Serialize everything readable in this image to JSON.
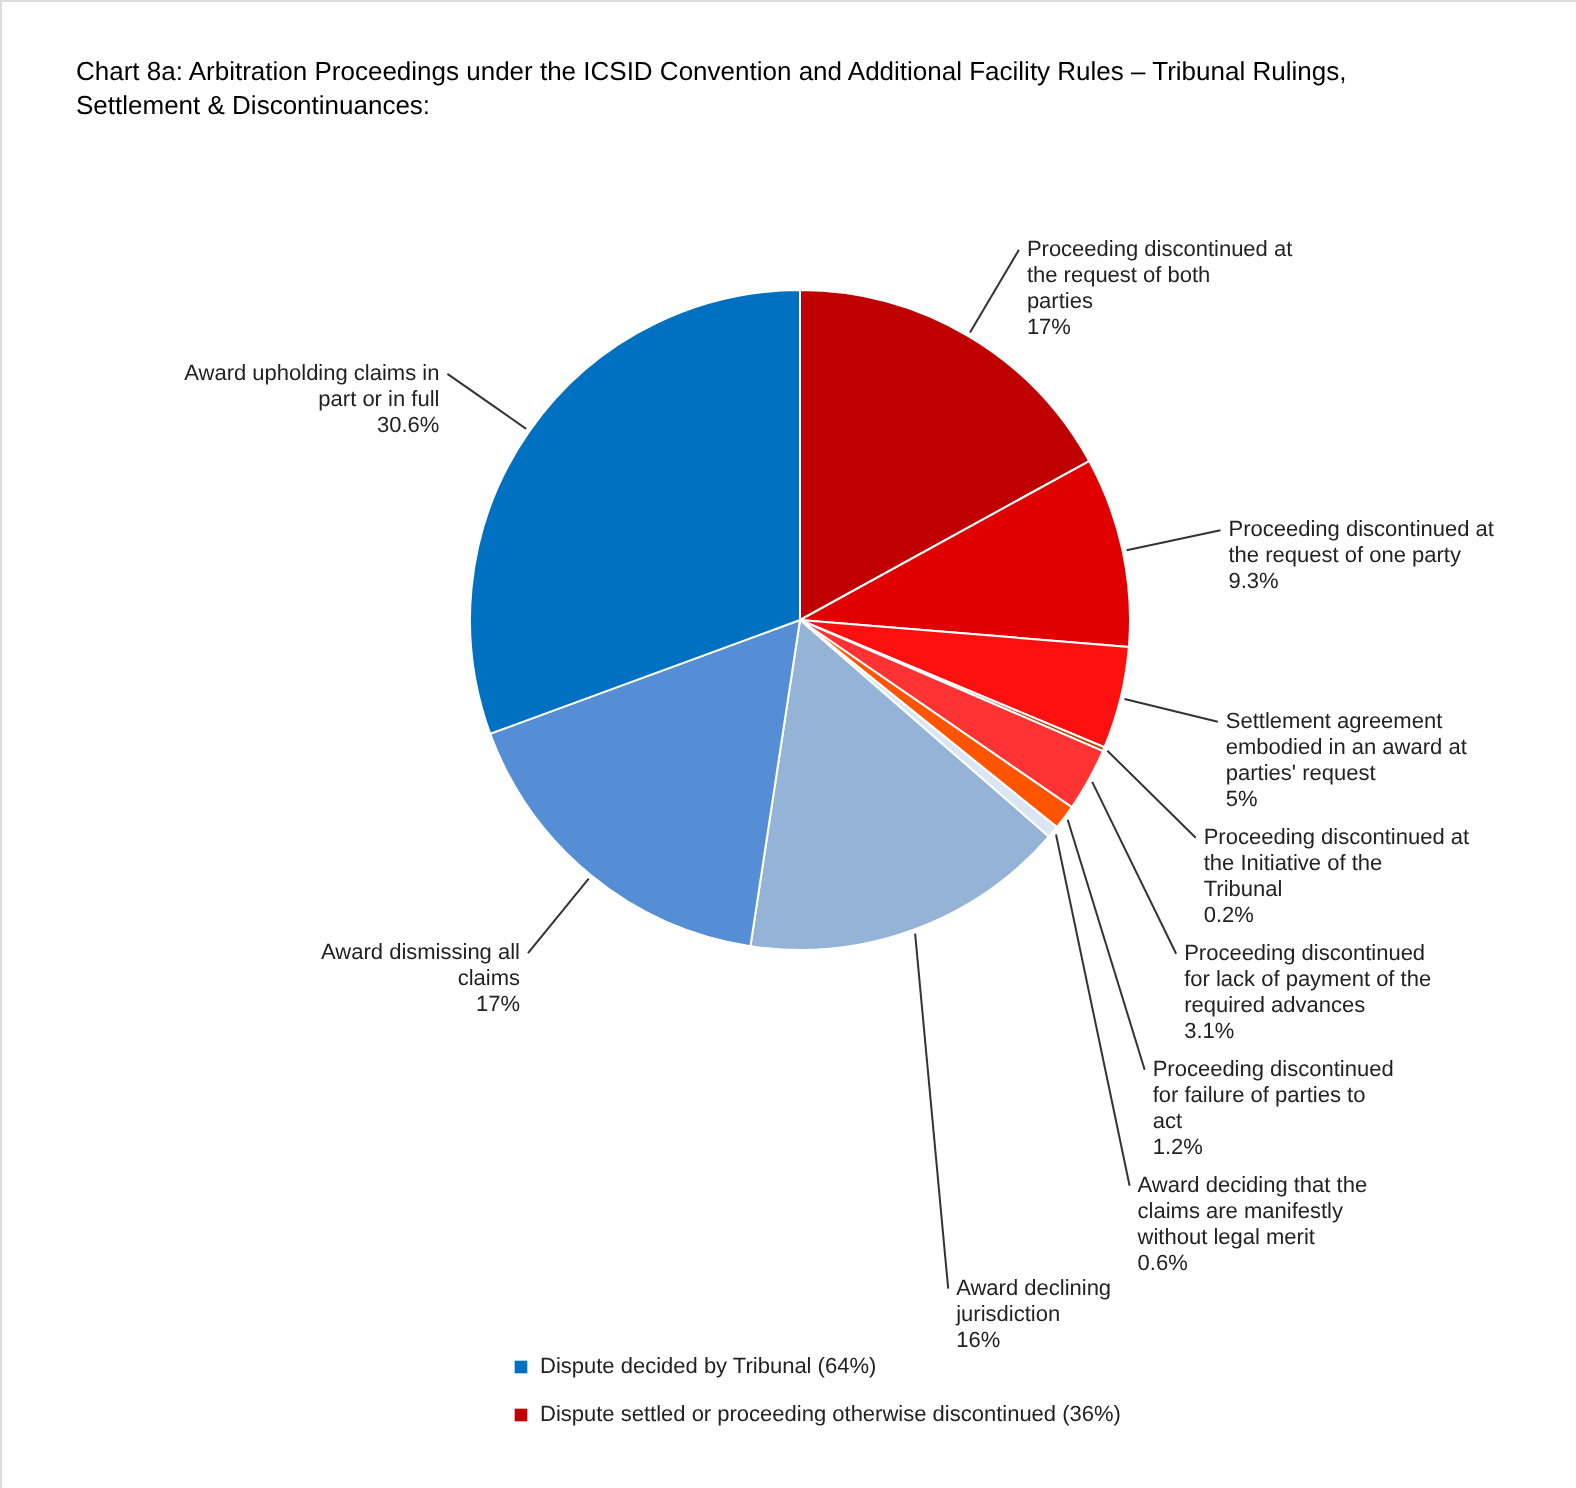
{
  "chart_data": {
    "type": "pie",
    "title": "Chart 8a: Arbitration Proceedings under the ICSID Convention and Additional Facility Rules – Tribunal Rulings, Settlement & Discontinuances:",
    "categories": [
      "Proceeding discontinued at the request of both parties",
      "Proceeding discontinued at the request of one party",
      "Settlement agreement embodied in an award at parties' request",
      "Proceeding discontinued at the Initiative of the Tribunal",
      "Proceeding discontinued for lack of payment of the required advances",
      "Proceeding discontinued for failure of parties to act",
      "Award deciding that the claims are manifestly without legal merit",
      "Award declining jurisdiction",
      "Award dismissing all claims",
      "Award upholding claims in part or in full"
    ],
    "values": [
      17,
      9.3,
      5,
      0.2,
      3.1,
      1.2,
      0.6,
      16,
      17,
      30.6
    ],
    "colors": [
      "#c00000",
      "#e00000",
      "#ff1010",
      "#c04000",
      "#ff3333",
      "#ff5500",
      "#dce6f2",
      "#95b3d7",
      "#558ed5",
      "#0070c0"
    ],
    "value_labels": [
      "17%",
      "9.3%",
      "5%",
      "0.2%",
      "3.1%",
      "1.2%",
      "0.6%",
      "16%",
      "17%",
      "30.6%"
    ],
    "annotations": [
      "Dispute decided by Tribunal (64%)",
      "Dispute settled or proceeding otherwise discontinued (36%)"
    ]
  }
}
